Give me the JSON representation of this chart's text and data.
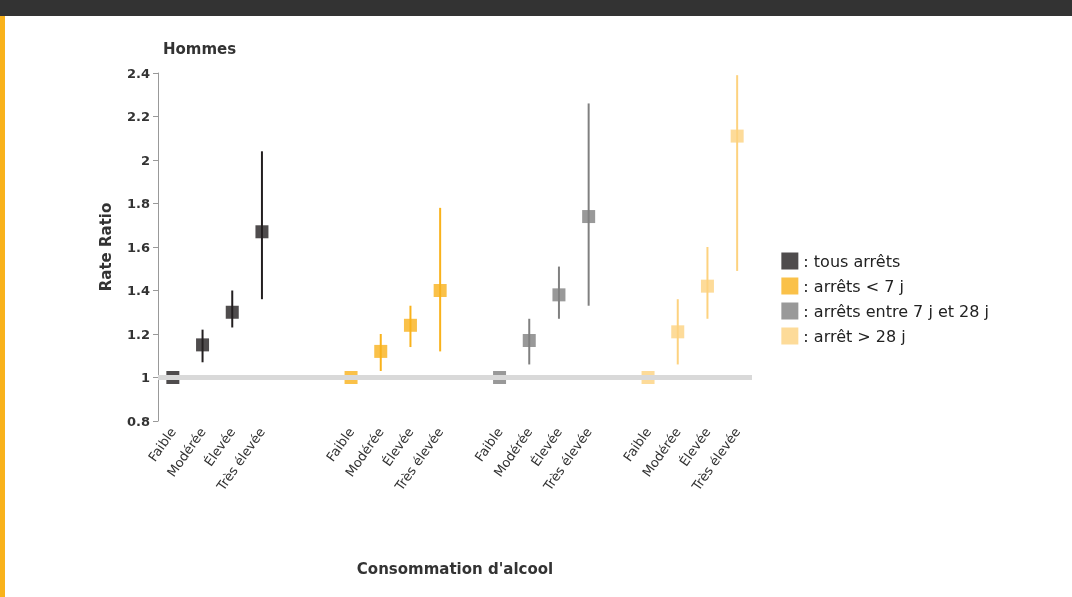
{
  "chart_data": {
    "type": "scatter",
    "title": "Hommes",
    "xlabel": "Consommation d'alcool",
    "ylabel": "Rate Ratio",
    "categories": [
      "Faible",
      "Modérée",
      "Élevée",
      "Très élevée",
      null,
      null,
      "Faible",
      "Modérée",
      "Élevée",
      "Très élevée",
      null,
      "Faible",
      "Modérée",
      "Élevée",
      "Très élevée",
      null,
      "Faible",
      "Modérée",
      "Élevée",
      "Très élevée"
    ],
    "series": [
      {
        "name": ": tous arrêts",
        "color": "#231f20",
        "values": [
          1,
          1.15,
          1.3,
          1.67,
          null,
          null,
          null,
          null,
          null,
          null,
          null,
          null,
          null,
          null,
          null,
          null,
          null,
          null,
          null,
          null
        ],
        "errors": [
          null,
          [
            1.07,
            1.22
          ],
          [
            1.23,
            1.4
          ],
          [
            1.36,
            2.04
          ],
          null,
          null,
          null,
          null,
          null,
          null,
          null,
          null,
          null,
          null,
          null,
          null,
          null,
          null,
          null,
          null
        ]
      },
      {
        "name": ": arrêts < 7 j",
        "color": "#f9b21b",
        "values": [
          null,
          null,
          null,
          null,
          null,
          null,
          1,
          1.12,
          1.24,
          1.4,
          null,
          null,
          null,
          null,
          null,
          null,
          null,
          null,
          null,
          null
        ],
        "errors": [
          null,
          null,
          null,
          null,
          null,
          null,
          null,
          [
            1.03,
            1.2
          ],
          [
            1.14,
            1.33
          ],
          [
            1.12,
            1.78
          ],
          null,
          null,
          null,
          null,
          null,
          null,
          null,
          null,
          null,
          null
        ]
      },
      {
        "name": ": arrêts entre 7 j et 28 j",
        "color": "#808080",
        "values": [
          null,
          null,
          null,
          null,
          null,
          null,
          null,
          null,
          null,
          null,
          null,
          1,
          1.17,
          1.38,
          1.74,
          null,
          null,
          null,
          null,
          null
        ],
        "errors": [
          null,
          null,
          null,
          null,
          null,
          null,
          null,
          null,
          null,
          null,
          null,
          null,
          [
            1.06,
            1.27
          ],
          [
            1.27,
            1.51
          ],
          [
            1.33,
            2.26
          ],
          null,
          null,
          null,
          null,
          null
        ]
      },
      {
        "name": ": arrêt > 28 j",
        "color": "#fdd27f",
        "values": [
          null,
          null,
          null,
          null,
          null,
          null,
          null,
          null,
          null,
          null,
          null,
          null,
          null,
          null,
          null,
          null,
          1,
          1.21,
          1.42,
          2.11
        ],
        "errors": [
          null,
          null,
          null,
          null,
          null,
          null,
          null,
          null,
          null,
          null,
          null,
          null,
          null,
          null,
          null,
          null,
          null,
          [
            1.06,
            1.36
          ],
          [
            1.27,
            1.6
          ],
          [
            1.49,
            2.39
          ]
        ]
      }
    ],
    "ylim": [
      0.8,
      2.4
    ],
    "yticks": [
      0.8,
      1,
      1.2,
      1.4,
      1.6,
      1.8,
      2,
      2.2,
      2.4
    ],
    "ref_lines": [
      {
        "axis": "y",
        "value": 1,
        "color": "#d9d9d9"
      }
    ],
    "marker": "square",
    "grid": false,
    "legend": "right"
  }
}
